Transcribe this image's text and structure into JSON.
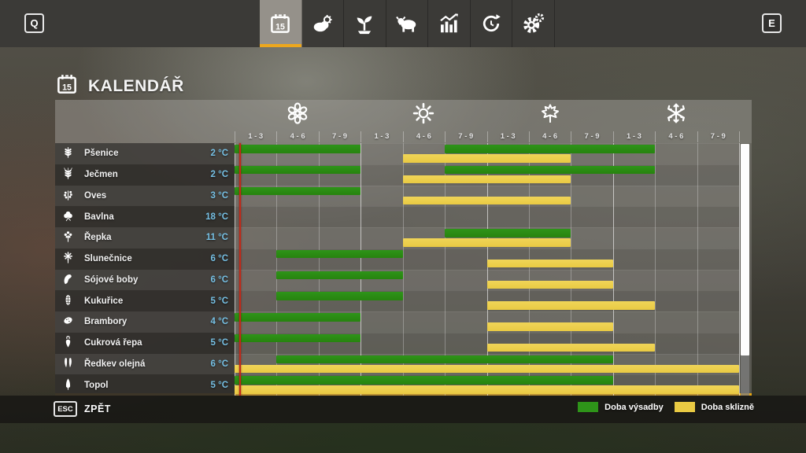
{
  "top_bar": {
    "left_key": "Q",
    "right_key": "E",
    "tabs": [
      {
        "name": "calendar-tab",
        "icon": "calendar-icon",
        "active": true
      },
      {
        "name": "weather-tab",
        "icon": "weather-icon",
        "active": false
      },
      {
        "name": "crops-tab",
        "icon": "sprout-icon",
        "active": false
      },
      {
        "name": "animals-tab",
        "icon": "cow-icon",
        "active": false
      },
      {
        "name": "statistics-tab",
        "icon": "stats-icon",
        "active": false
      },
      {
        "name": "economy-tab",
        "icon": "cycle-icon",
        "active": false
      },
      {
        "name": "settings-tab",
        "icon": "gear-icon",
        "active": false
      }
    ]
  },
  "header": {
    "title": "KALENDÁŘ",
    "title_icon": "calendar-icon"
  },
  "calendar": {
    "seasons": [
      {
        "name": "spring",
        "icon": "flower-icon"
      },
      {
        "name": "summer",
        "icon": "sun-icon"
      },
      {
        "name": "autumn",
        "icon": "leaf-icon"
      },
      {
        "name": "winter",
        "icon": "snowflake-icon"
      }
    ],
    "period_labels": [
      "1 - 3",
      "4 - 6",
      "7 - 9"
    ],
    "current_day_col": 0.11,
    "rows": [
      {
        "crop": "Pšenice",
        "icon": "wheat-icon",
        "temp": "2 °C",
        "planting": [
          [
            0,
            3
          ],
          [
            5,
            10
          ]
        ],
        "harvest": [
          [
            4,
            8
          ]
        ]
      },
      {
        "crop": "Ječmen",
        "icon": "barley-icon",
        "temp": "2 °C",
        "planting": [
          [
            0,
            3
          ],
          [
            5,
            10
          ]
        ],
        "harvest": [
          [
            4,
            8
          ]
        ]
      },
      {
        "crop": "Oves",
        "icon": "oat-icon",
        "temp": "3 °C",
        "planting": [
          [
            0,
            3
          ]
        ],
        "harvest": [
          [
            4,
            8
          ]
        ]
      },
      {
        "crop": "Bavlna",
        "icon": "cotton-icon",
        "temp": "18 °C",
        "planting": [],
        "harvest": []
      },
      {
        "crop": "Řepka",
        "icon": "canola-icon",
        "temp": "11 °C",
        "planting": [
          [
            5,
            8
          ]
        ],
        "harvest": [
          [
            4,
            8
          ]
        ]
      },
      {
        "crop": "Slunečnice",
        "icon": "sunflower-icon",
        "temp": "6 °C",
        "planting": [
          [
            1,
            4
          ]
        ],
        "harvest": [
          [
            6,
            9
          ]
        ]
      },
      {
        "crop": "Sójové boby",
        "icon": "soybean-icon",
        "temp": "6 °C",
        "planting": [
          [
            1,
            4
          ]
        ],
        "harvest": [
          [
            6,
            9
          ]
        ]
      },
      {
        "crop": "Kukuřice",
        "icon": "corn-icon",
        "temp": "5 °C",
        "planting": [
          [
            1,
            4
          ]
        ],
        "harvest": [
          [
            6,
            10
          ]
        ]
      },
      {
        "crop": "Brambory",
        "icon": "potato-icon",
        "temp": "4 °C",
        "planting": [
          [
            0,
            3
          ]
        ],
        "harvest": [
          [
            6,
            9
          ]
        ]
      },
      {
        "crop": "Cukrová řepa",
        "icon": "sugarbeet-icon",
        "temp": "5 °C",
        "planting": [
          [
            0,
            3
          ]
        ],
        "harvest": [
          [
            6,
            10
          ]
        ]
      },
      {
        "crop": "Ředkev olejná",
        "icon": "radish-icon",
        "temp": "6 °C",
        "planting": [
          [
            1,
            9
          ]
        ],
        "harvest": [
          [
            0,
            12
          ]
        ]
      },
      {
        "crop": "Topol",
        "icon": "poplar-icon",
        "temp": "5 °C",
        "planting": [
          [
            0,
            9
          ]
        ],
        "harvest": [
          [
            0,
            12
          ]
        ]
      }
    ]
  },
  "legend": {
    "items": [
      {
        "label": "Doba výsadby",
        "color": "#2e9419"
      },
      {
        "label": "Doba sklizně",
        "color": "#e9ca43"
      }
    ]
  },
  "footer": {
    "key": "ESC",
    "label": "ZPĚT"
  },
  "colors": {
    "planting_bar": "#2e9419",
    "harvest_bar": "#e9ca43",
    "accent_orange": "#eda71d",
    "bottom_border_orange": "#e7a614",
    "current_day_line": "#bf2a1a",
    "temperature_text": "#76c0e4"
  }
}
